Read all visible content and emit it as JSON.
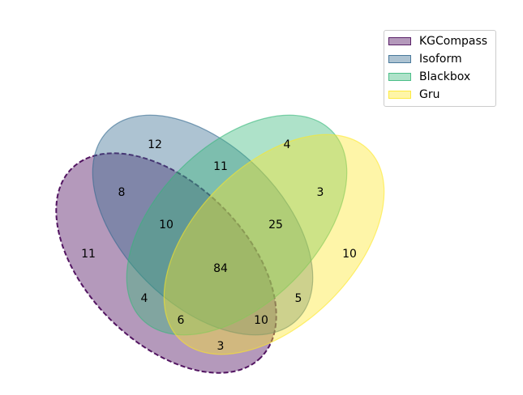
{
  "chart_data": {
    "type": "venn",
    "sets": [
      {
        "name": "KGCompass",
        "color": "#440154",
        "outline": "dashed"
      },
      {
        "name": "Isoform",
        "color": "#31688e"
      },
      {
        "name": "Blackbox",
        "color": "#35b779"
      },
      {
        "name": "Gru",
        "color": "#fde725"
      }
    ],
    "regions": [
      {
        "sets": [
          "Isoform"
        ],
        "value": "12"
      },
      {
        "sets": [
          "Blackbox"
        ],
        "value": "4"
      },
      {
        "sets": [
          "Isoform",
          "Blackbox"
        ],
        "value": "11"
      },
      {
        "sets": [
          "KGCompass",
          "Isoform"
        ],
        "value": "8"
      },
      {
        "sets": [
          "Blackbox",
          "Gru"
        ],
        "value": "3"
      },
      {
        "sets": [
          "KGCompass",
          "Isoform",
          "Blackbox"
        ],
        "value": "10"
      },
      {
        "sets": [
          "Isoform",
          "Blackbox",
          "Gru"
        ],
        "value": "25"
      },
      {
        "sets": [
          "KGCompass"
        ],
        "value": "11"
      },
      {
        "sets": [
          "Gru"
        ],
        "value": "10"
      },
      {
        "sets": [
          "KGCompass",
          "Isoform",
          "Blackbox",
          "Gru"
        ],
        "value": "84"
      },
      {
        "sets": [
          "KGCompass",
          "Blackbox"
        ],
        "value": "4"
      },
      {
        "sets": [
          "Isoform",
          "Gru"
        ],
        "value": "5"
      },
      {
        "sets": [
          "KGCompass",
          "Blackbox",
          "Gru"
        ],
        "value": "6"
      },
      {
        "sets": [
          "KGCompass",
          "Isoform",
          "Gru"
        ],
        "value": "10"
      },
      {
        "sets": [
          "KGCompass",
          "Gru"
        ],
        "value": "3"
      }
    ],
    "legend": {
      "position": "top-right"
    }
  }
}
